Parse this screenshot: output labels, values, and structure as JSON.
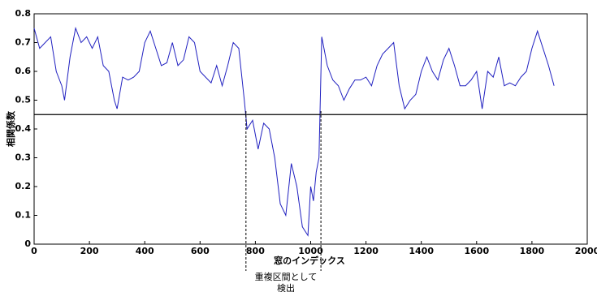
{
  "chart_data": {
    "type": "line",
    "x_label": "窓のインデックス",
    "y_label": "相関係数",
    "annotation": [
      "重複区間として",
      "検出"
    ],
    "xlim": [
      0,
      2000
    ],
    "ylim": [
      0,
      0.8
    ],
    "xticks": [
      0,
      200,
      400,
      600,
      800,
      1000,
      1200,
      1400,
      1600,
      1800,
      2000
    ],
    "yticks": [
      0,
      0.1,
      0.2,
      0.3,
      0.4,
      0.5,
      0.6,
      0.7,
      0.8
    ],
    "threshold": 0.45,
    "markers": [
      766,
      1037
    ],
    "series": [
      {
        "name": "correlation",
        "color": "#2020c0",
        "x": [
          0,
          20,
          40,
          60,
          80,
          100,
          110,
          130,
          150,
          170,
          190,
          210,
          230,
          250,
          270,
          290,
          300,
          320,
          340,
          360,
          380,
          400,
          420,
          440,
          460,
          480,
          500,
          520,
          540,
          560,
          580,
          600,
          620,
          640,
          660,
          680,
          700,
          720,
          740,
          760,
          770,
          790,
          810,
          830,
          850,
          870,
          890,
          910,
          930,
          950,
          970,
          990,
          1000,
          1010,
          1020,
          1030,
          1040,
          1060,
          1080,
          1100,
          1120,
          1140,
          1160,
          1180,
          1200,
          1220,
          1240,
          1260,
          1280,
          1300,
          1320,
          1340,
          1360,
          1380,
          1400,
          1420,
          1440,
          1460,
          1480,
          1500,
          1520,
          1540,
          1560,
          1580,
          1600,
          1620,
          1640,
          1660,
          1680,
          1700,
          1720,
          1740,
          1760,
          1780,
          1800,
          1820,
          1840,
          1860,
          1880
        ],
        "values": [
          0.75,
          0.68,
          0.7,
          0.72,
          0.6,
          0.55,
          0.5,
          0.65,
          0.75,
          0.7,
          0.72,
          0.68,
          0.72,
          0.62,
          0.6,
          0.5,
          0.47,
          0.58,
          0.57,
          0.58,
          0.6,
          0.7,
          0.74,
          0.68,
          0.62,
          0.63,
          0.7,
          0.62,
          0.64,
          0.72,
          0.7,
          0.6,
          0.58,
          0.56,
          0.62,
          0.55,
          0.62,
          0.7,
          0.68,
          0.5,
          0.4,
          0.43,
          0.33,
          0.42,
          0.4,
          0.3,
          0.14,
          0.1,
          0.28,
          0.2,
          0.06,
          0.03,
          0.2,
          0.15,
          0.25,
          0.3,
          0.72,
          0.62,
          0.57,
          0.55,
          0.5,
          0.54,
          0.57,
          0.57,
          0.58,
          0.55,
          0.62,
          0.66,
          0.68,
          0.7,
          0.55,
          0.47,
          0.5,
          0.52,
          0.6,
          0.65,
          0.6,
          0.57,
          0.64,
          0.68,
          0.62,
          0.55,
          0.55,
          0.57,
          0.6,
          0.47,
          0.6,
          0.58,
          0.65,
          0.55,
          0.56,
          0.55,
          0.58,
          0.6,
          0.68,
          0.74,
          0.68,
          0.62,
          0.55
        ]
      }
    ]
  }
}
